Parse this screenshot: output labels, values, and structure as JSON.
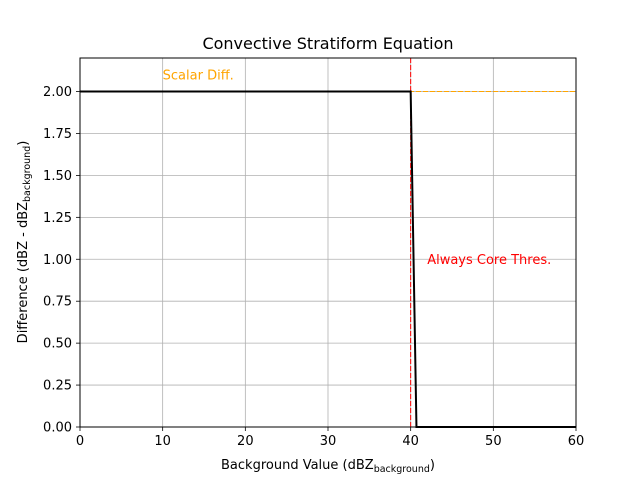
{
  "chart_data": {
    "type": "line",
    "title": "Convective Stratiform Equation",
    "xlabel": {
      "main": "Background Value (dBZ",
      "sub": "background",
      "end": ")"
    },
    "ylabel": {
      "main": "Difference (dBZ - dBZ",
      "sub": "background",
      "end": ")"
    },
    "xlim": [
      0,
      60
    ],
    "ylim": [
      0,
      2.2
    ],
    "x_ticks": [
      0,
      10,
      20,
      30,
      40,
      50,
      60
    ],
    "x_tick_labels": [
      "0",
      "10",
      "20",
      "30",
      "40",
      "50",
      "60"
    ],
    "y_ticks": [
      0,
      0.25,
      0.5,
      0.75,
      1.0,
      1.25,
      1.5,
      1.75,
      2.0
    ],
    "y_tick_labels": [
      "0.00",
      "0.25",
      "0.50",
      "0.75",
      "1.00",
      "1.25",
      "1.50",
      "1.75",
      "2.00"
    ],
    "grid": true,
    "series": [
      {
        "x": [
          0,
          40,
          40.7,
          60
        ],
        "y": [
          2.0,
          2.0,
          0.0,
          0.0
        ],
        "color": "#000000"
      }
    ],
    "reference_lines": [
      {
        "orientation": "horizontal",
        "value": 2.0,
        "color": "#ffa500",
        "style": "dashed",
        "label": "Scalar Diff.",
        "label_x": 10,
        "label_y": 2.1
      },
      {
        "orientation": "vertical",
        "value": 40,
        "color": "#ff0000",
        "style": "dashed",
        "label": "Always Core Thres.",
        "label_x": 42,
        "label_y": 1.0
      }
    ]
  }
}
